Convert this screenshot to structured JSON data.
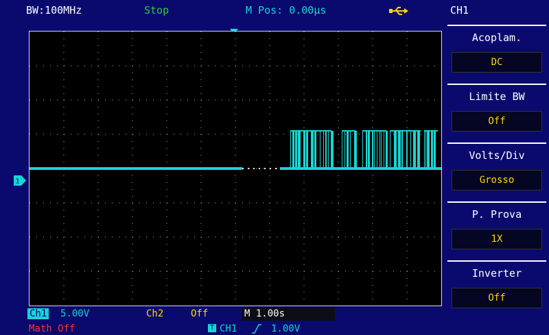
{
  "header": {
    "bandwidth": "BW:100MHz",
    "run_state": "Stop",
    "m_pos": "M Pos: 0.00µs",
    "usb_icon": "usb-icon"
  },
  "colors": {
    "ch1": "#1ad4d4",
    "ch2": "#ffd700",
    "math": "#ff3030",
    "run_state": "#25d13a",
    "background": "#0a0a6e"
  },
  "channels": {
    "ch1_label": "Ch1",
    "ch1_volts": "5.00V",
    "ch2_label": "Ch2",
    "ch2_state": "Off",
    "ch1_marker": "1"
  },
  "timebase": {
    "label": "M 1.00s"
  },
  "math": {
    "label": "Math Off"
  },
  "trigger": {
    "icon_letter": "T",
    "source": "CH1",
    "edge": "rising",
    "level": "1.00V"
  },
  "menu": {
    "title": "CH1",
    "items": [
      {
        "label": "Acoplam.",
        "value": "DC"
      },
      {
        "label": "Limite BW",
        "value": "Off"
      },
      {
        "label": "Volts/Div",
        "value": "Grosso"
      },
      {
        "label": "P. Prova",
        "value": "1X"
      },
      {
        "label": "Inverter",
        "value": "Off"
      }
    ]
  },
  "waveform": {
    "divisions_x": 12,
    "divisions_y": 8,
    "baseline_div": 4.0,
    "pulse_top_div": 2.9,
    "gap_start_div": 6.2,
    "gap_end_div": 7.3,
    "bursts": [
      [
        7.6,
        8.8
      ],
      [
        9.1,
        9.5
      ],
      [
        9.7,
        10.4
      ],
      [
        10.5,
        11.4
      ],
      [
        11.5,
        11.9
      ]
    ]
  }
}
